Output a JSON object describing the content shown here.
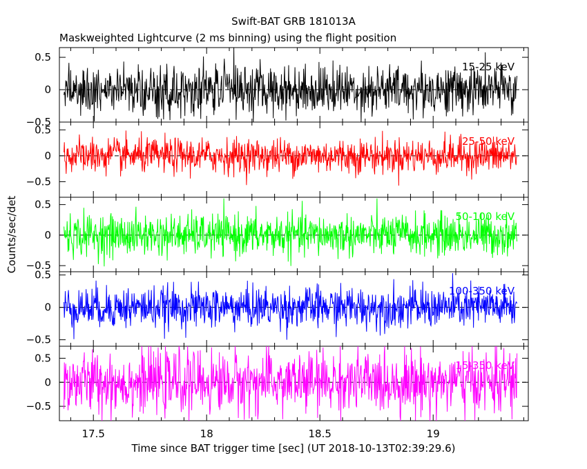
{
  "chart_data": {
    "type": "line",
    "title": "Swift-BAT GRB 181013A",
    "subtitle": "Maskweighted Lightcurve (2 ms binning) using the flight position",
    "xlabel": "Time since BAT trigger time [sec] (UT 2018-10-13T02:39:29.6)",
    "ylabel": "Counts/sec/det",
    "xlim": [
      17.35,
      19.42
    ],
    "x_ticks": [
      "17.5",
      "18",
      "18.5",
      "19"
    ],
    "x_tick_values": [
      17.5,
      18.0,
      18.5,
      19.0
    ],
    "data_x_range": [
      17.37,
      19.37
    ],
    "bin_width_sec": 0.002,
    "dashed_zero_line": true,
    "panels": [
      {
        "name": "15-25 keV",
        "color": "#000000",
        "ylim": [
          -0.5,
          0.65
        ],
        "y_ticks": [
          "0.5",
          "0",
          "−0.5"
        ],
        "y_tick_values": [
          0.5,
          0,
          -0.5
        ],
        "noise_sigma": 0.19,
        "clip": [
          -0.5,
          0.65
        ]
      },
      {
        "name": "25-50 keV",
        "color": "#ff0000",
        "ylim": [
          -0.8,
          0.65
        ],
        "y_ticks": [
          "0.5",
          "0",
          "−0.5"
        ],
        "y_tick_values": [
          0.5,
          0,
          -0.5
        ],
        "noise_sigma": 0.17,
        "clip": [
          -0.8,
          0.65
        ]
      },
      {
        "name": "50-100 keV",
        "color": "#00ff00",
        "ylim": [
          -0.6,
          0.62
        ],
        "y_ticks": [
          "0.5",
          "0",
          "−0.5"
        ],
        "y_tick_values": [
          0.5,
          0,
          -0.5
        ],
        "noise_sigma": 0.17,
        "clip": [
          -0.55,
          0.6
        ]
      },
      {
        "name": "100-350 keV",
        "color": "#0000ff",
        "ylim": [
          -0.6,
          0.55
        ],
        "y_ticks": [
          "0.5",
          "0",
          "−0.5"
        ],
        "y_tick_values": [
          0.5,
          0,
          -0.5
        ],
        "noise_sigma": 0.16,
        "clip": [
          -0.55,
          0.55
        ]
      },
      {
        "name": "15-350 keV",
        "color": "#ff00ff",
        "ylim": [
          -0.8,
          0.75
        ],
        "y_ticks": [
          "0.5",
          "0",
          "−0.5"
        ],
        "y_tick_values": [
          0.5,
          0,
          -0.5
        ],
        "noise_sigma": 0.32,
        "clip": [
          -0.8,
          0.75
        ]
      }
    ]
  }
}
